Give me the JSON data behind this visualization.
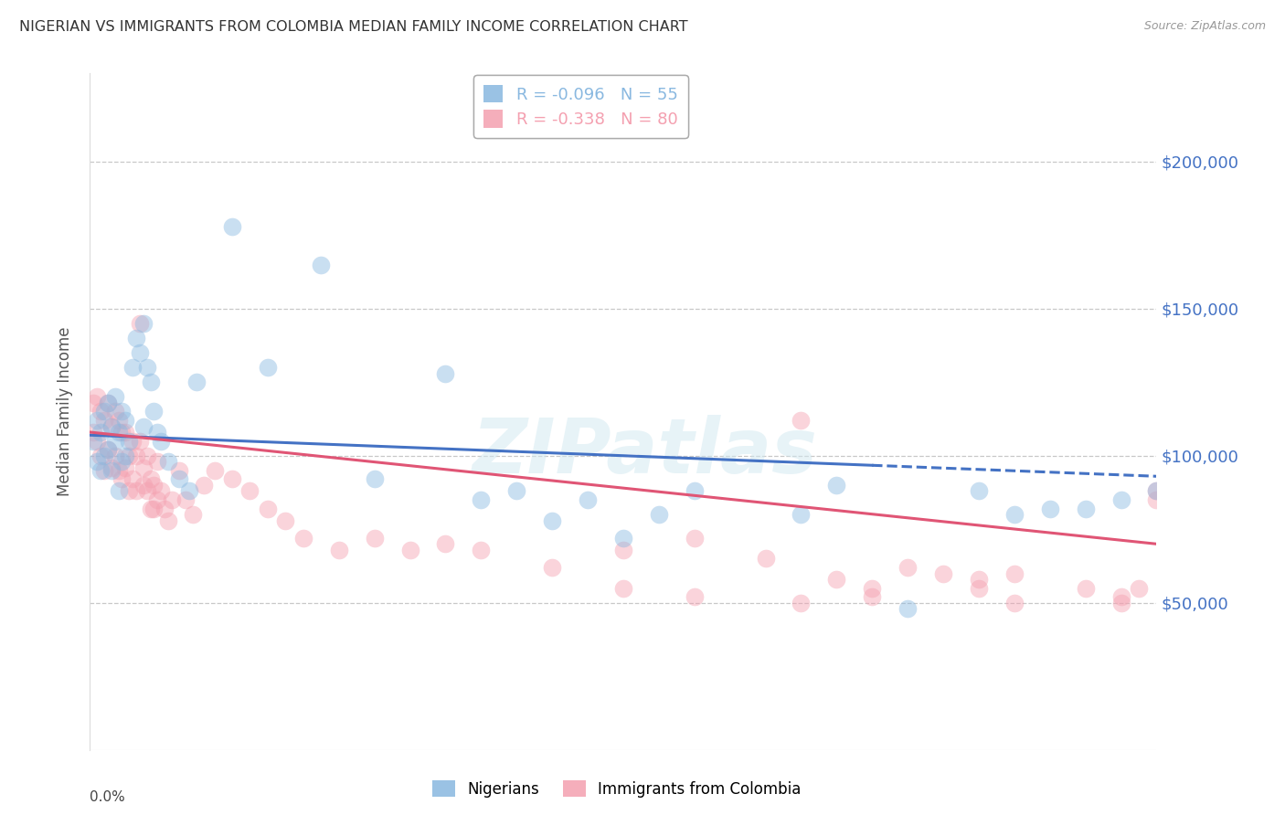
{
  "title": "NIGERIAN VS IMMIGRANTS FROM COLOMBIA MEDIAN FAMILY INCOME CORRELATION CHART",
  "source": "Source: ZipAtlas.com",
  "ylabel": "Median Family Income",
  "y_ticks": [
    50000,
    100000,
    150000,
    200000
  ],
  "y_tick_labels": [
    "$50,000",
    "$100,000",
    "$150,000",
    "$200,000"
  ],
  "xlim": [
    0.0,
    0.3
  ],
  "ylim": [
    0,
    230000
  ],
  "watermark": "ZIPatlas",
  "background_color": "#ffffff",
  "grid_color": "#c8c8c8",
  "title_color": "#333333",
  "right_label_color": "#4472c4",
  "source_color": "#999999",
  "legend_label_nigerians": "Nigerians",
  "legend_label_colombia": "Immigrants from Colombia",
  "nigerians_color": "#89b8e0",
  "colombia_color": "#f4a0b0",
  "nigerians_x": [
    0.001,
    0.002,
    0.002,
    0.003,
    0.003,
    0.004,
    0.004,
    0.005,
    0.005,
    0.006,
    0.006,
    0.007,
    0.007,
    0.008,
    0.008,
    0.009,
    0.009,
    0.01,
    0.01,
    0.011,
    0.012,
    0.013,
    0.014,
    0.015,
    0.015,
    0.016,
    0.017,
    0.018,
    0.019,
    0.02,
    0.022,
    0.025,
    0.028,
    0.03,
    0.04,
    0.05,
    0.065,
    0.08,
    0.1,
    0.11,
    0.12,
    0.13,
    0.14,
    0.15,
    0.16,
    0.17,
    0.2,
    0.21,
    0.23,
    0.25,
    0.26,
    0.27,
    0.28,
    0.29,
    0.3
  ],
  "nigerians_y": [
    105000,
    112000,
    98000,
    108000,
    95000,
    115000,
    100000,
    118000,
    102000,
    110000,
    95000,
    120000,
    105000,
    108000,
    88000,
    115000,
    98000,
    112000,
    100000,
    105000,
    130000,
    140000,
    135000,
    145000,
    110000,
    130000,
    125000,
    115000,
    108000,
    105000,
    98000,
    92000,
    88000,
    125000,
    178000,
    130000,
    165000,
    92000,
    128000,
    85000,
    88000,
    78000,
    85000,
    72000,
    80000,
    88000,
    80000,
    90000,
    48000,
    88000,
    80000,
    82000,
    82000,
    85000,
    88000
  ],
  "colombia_x": [
    0.001,
    0.001,
    0.002,
    0.002,
    0.003,
    0.003,
    0.004,
    0.004,
    0.005,
    0.005,
    0.006,
    0.006,
    0.007,
    0.007,
    0.008,
    0.008,
    0.009,
    0.009,
    0.01,
    0.01,
    0.011,
    0.011,
    0.012,
    0.012,
    0.013,
    0.013,
    0.014,
    0.014,
    0.015,
    0.015,
    0.016,
    0.016,
    0.017,
    0.017,
    0.018,
    0.018,
    0.019,
    0.019,
    0.02,
    0.021,
    0.022,
    0.023,
    0.025,
    0.027,
    0.029,
    0.032,
    0.035,
    0.04,
    0.045,
    0.05,
    0.055,
    0.06,
    0.07,
    0.08,
    0.09,
    0.1,
    0.11,
    0.13,
    0.15,
    0.17,
    0.19,
    0.2,
    0.21,
    0.22,
    0.23,
    0.24,
    0.25,
    0.26,
    0.28,
    0.29,
    0.295,
    0.3,
    0.15,
    0.17,
    0.2,
    0.22,
    0.25,
    0.26,
    0.29,
    0.3
  ],
  "colombia_y": [
    118000,
    108000,
    120000,
    105000,
    115000,
    100000,
    112000,
    95000,
    118000,
    102000,
    110000,
    96000,
    115000,
    100000,
    112000,
    95000,
    108000,
    92000,
    108000,
    96000,
    100000,
    88000,
    105000,
    92000,
    100000,
    88000,
    145000,
    105000,
    96000,
    90000,
    100000,
    88000,
    92000,
    82000,
    90000,
    82000,
    98000,
    85000,
    88000,
    82000,
    78000,
    85000,
    95000,
    85000,
    80000,
    90000,
    95000,
    92000,
    88000,
    82000,
    78000,
    72000,
    68000,
    72000,
    68000,
    70000,
    68000,
    62000,
    68000,
    72000,
    65000,
    112000,
    58000,
    55000,
    62000,
    60000,
    58000,
    60000,
    55000,
    52000,
    55000,
    88000,
    55000,
    52000,
    50000,
    52000,
    55000,
    50000,
    50000,
    85000
  ],
  "nigerian_R": -0.096,
  "colombia_R": -0.338,
  "nigerian_N": 55,
  "colombia_N": 80,
  "trend_blue_color": "#4472c4",
  "trend_pink_color": "#e05575",
  "trend_linewidth": 2.2,
  "scatter_size": 200,
  "scatter_alpha": 0.45
}
